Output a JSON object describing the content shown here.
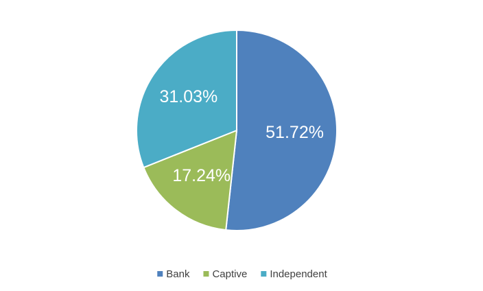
{
  "chart_data": {
    "type": "pie",
    "categories": [
      "Bank",
      "Captive",
      "Independent"
    ],
    "values": [
      51.72,
      17.24,
      31.03
    ],
    "value_labels": [
      "51.72%",
      "17.24%",
      "31.03%"
    ],
    "colors": [
      "#4f81bd",
      "#9bbb59",
      "#4bacc6"
    ],
    "legend": "bottom"
  }
}
